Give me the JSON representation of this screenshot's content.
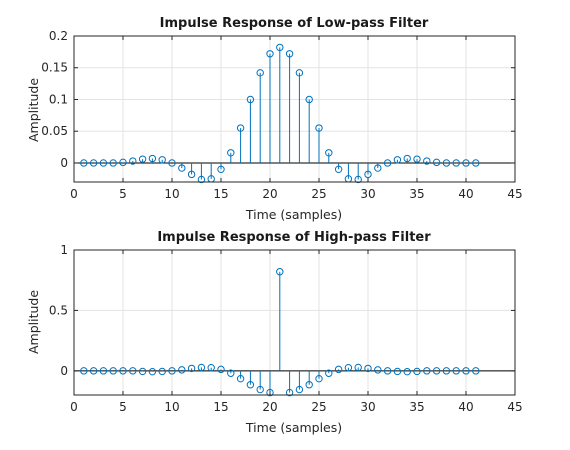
{
  "chart_data": [
    {
      "type": "stem",
      "title": "Impulse Response of Low-pass Filter",
      "xlabel": "Time (samples)",
      "ylabel": "Amplitude",
      "xlim": [
        0,
        45
      ],
      "ylim": [
        -0.03,
        0.2
      ],
      "xticks": [
        0,
        5,
        10,
        15,
        20,
        25,
        30,
        35,
        40,
        45
      ],
      "yticks": [
        0,
        0.05,
        0.1,
        0.15,
        0.2
      ],
      "yticklabels": [
        "0",
        "0.05",
        "0.1",
        "0.15",
        "0.2"
      ],
      "grid": true,
      "marker": "circle",
      "color": "#0072BD",
      "x": [
        1,
        2,
        3,
        4,
        5,
        6,
        7,
        8,
        9,
        10,
        11,
        12,
        13,
        14,
        15,
        16,
        17,
        18,
        19,
        20,
        21,
        22,
        23,
        24,
        25,
        26,
        27,
        28,
        29,
        30,
        31,
        32,
        33,
        34,
        35,
        36,
        37,
        38,
        39,
        40,
        41
      ],
      "values": [
        0,
        0,
        0,
        0,
        0.001,
        0.003,
        0.006,
        0.007,
        0.005,
        0,
        -0.008,
        -0.018,
        -0.026,
        -0.025,
        -0.01,
        0.016,
        0.055,
        0.1,
        0.142,
        0.172,
        0.182,
        0.172,
        0.142,
        0.1,
        0.055,
        0.016,
        -0.01,
        -0.025,
        -0.026,
        -0.018,
        -0.008,
        0,
        0.005,
        0.007,
        0.006,
        0.003,
        0.001,
        0,
        0,
        0,
        0
      ]
    },
    {
      "type": "stem",
      "title": "Impulse Response of High-pass Filter",
      "xlabel": "Time (samples)",
      "ylabel": "Amplitude",
      "xlim": [
        0,
        45
      ],
      "ylim": [
        -0.2,
        1
      ],
      "xticks": [
        0,
        5,
        10,
        15,
        20,
        25,
        30,
        35,
        40,
        45
      ],
      "yticks": [
        0,
        0.5,
        1
      ],
      "yticklabels": [
        "0",
        "0.5",
        "1"
      ],
      "grid": true,
      "marker": "circle",
      "color": "#0072BD",
      "x": [
        1,
        2,
        3,
        4,
        5,
        6,
        7,
        8,
        9,
        10,
        11,
        12,
        13,
        14,
        15,
        16,
        17,
        18,
        19,
        20,
        21,
        22,
        23,
        24,
        25,
        26,
        27,
        28,
        29,
        30,
        31,
        32,
        33,
        34,
        35,
        36,
        37,
        38,
        39,
        40,
        41
      ],
      "values": [
        0,
        0,
        0,
        0,
        0,
        0,
        -0.005,
        -0.007,
        -0.005,
        0,
        0.008,
        0.02,
        0.028,
        0.026,
        0.012,
        -0.02,
        -0.065,
        -0.115,
        -0.155,
        -0.18,
        0.82,
        -0.18,
        -0.155,
        -0.115,
        -0.065,
        -0.02,
        0.012,
        0.026,
        0.028,
        0.02,
        0.008,
        0,
        -0.005,
        -0.007,
        -0.005,
        0,
        0,
        0,
        0,
        0,
        0
      ]
    }
  ]
}
